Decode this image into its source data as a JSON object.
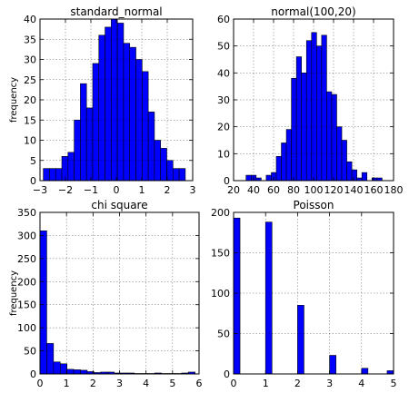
{
  "chart_data": [
    {
      "type": "bar",
      "title": "standard_normal",
      "xlabel": "",
      "ylabel": "frequency",
      "xlim": [
        -3,
        3
      ],
      "ylim": [
        0,
        40
      ],
      "xticks": [
        -3,
        -2,
        -1,
        0,
        1,
        2,
        3
      ],
      "yticks": [
        0,
        5,
        10,
        15,
        20,
        25,
        30,
        35,
        40
      ],
      "grid": true,
      "bar_color": "#0000ff",
      "bins": {
        "x_start": -2.87,
        "x_end": 2.71,
        "values": [
          3,
          3,
          3,
          6,
          7,
          15,
          24,
          18,
          29,
          36,
          38,
          40,
          39,
          34,
          33,
          30,
          27,
          17,
          10,
          8,
          5,
          3,
          3
        ]
      }
    },
    {
      "type": "bar",
      "title": "normal(100,20)",
      "xlabel": "",
      "ylabel": "",
      "xlim": [
        20,
        180
      ],
      "ylim": [
        0,
        60
      ],
      "xticks": [
        20,
        40,
        60,
        80,
        100,
        120,
        140,
        160,
        180
      ],
      "yticks": [
        0,
        10,
        20,
        30,
        40,
        50,
        60
      ],
      "grid": true,
      "bar_color": "#0000ff",
      "bins": {
        "x_start": 32.5,
        "x_end": 168.5,
        "values": [
          2,
          2,
          1,
          0,
          2,
          3,
          9,
          14,
          19,
          38,
          46,
          40,
          52,
          55,
          50,
          54,
          33,
          32,
          20,
          15,
          7,
          4,
          1,
          3,
          0,
          1,
          1
        ]
      }
    },
    {
      "type": "bar",
      "title": "chi square",
      "xlabel": "",
      "ylabel": "frequency",
      "xlim": [
        0,
        6
      ],
      "ylim": [
        0,
        350
      ],
      "xticks": [
        0,
        1,
        2,
        3,
        4,
        5,
        6
      ],
      "yticks": [
        0,
        50,
        100,
        150,
        200,
        250,
        300,
        350
      ],
      "grid": true,
      "bar_color": "#0000ff",
      "bins": {
        "x_start": 0,
        "x_end": 5.85,
        "values": [
          310,
          66,
          26,
          22,
          10,
          9,
          8,
          5,
          3,
          4,
          4,
          2,
          2,
          2,
          1,
          1,
          1,
          2,
          1,
          1,
          1,
          2,
          4
        ]
      }
    },
    {
      "type": "bar",
      "title": "Poisson",
      "xlabel": "",
      "ylabel": "",
      "xlim": [
        0,
        5
      ],
      "ylim": [
        0,
        200
      ],
      "xticks": [
        0,
        1,
        2,
        3,
        4,
        5
      ],
      "yticks": [
        0,
        50,
        100,
        150,
        200
      ],
      "grid": true,
      "bar_color": "#0000ff",
      "bins": {
        "x_start": 0,
        "x_end": 5,
        "values": [
          193,
          0,
          0,
          0,
          0,
          188,
          0,
          0,
          0,
          0,
          85,
          0,
          0,
          0,
          0,
          23,
          0,
          0,
          0,
          0,
          7,
          0,
          0,
          0,
          4
        ]
      }
    }
  ]
}
